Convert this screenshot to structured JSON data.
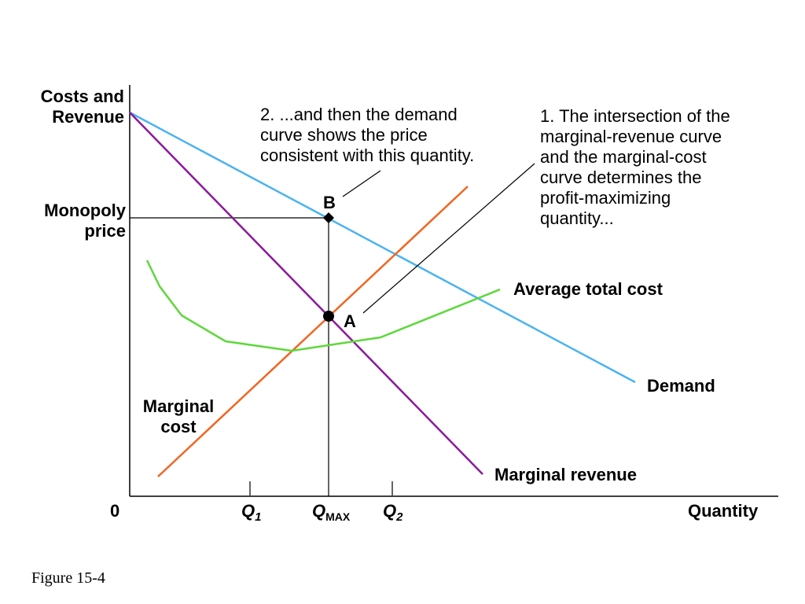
{
  "axes": {
    "y_label_line1": "Costs and",
    "y_label_line2": "Revenue",
    "x_label": "Quantity",
    "origin": "0",
    "y_tick_line1": "Monopoly",
    "y_tick_line2": "price"
  },
  "x_ticks": {
    "q1_main": "Q",
    "q1_sub": "1",
    "qmax_main": "Q",
    "qmax_sub": "MAX",
    "q2_main": "Q",
    "q2_sub": "2"
  },
  "curves": {
    "demand": "Demand",
    "marginal_revenue": "Marginal revenue",
    "average_total_cost": "Average total cost",
    "marginal_cost_line1": "Marginal",
    "marginal_cost_line2": "cost"
  },
  "points": {
    "a": "A",
    "b": "B"
  },
  "annotations": {
    "step2": [
      "2. ...and then the demand",
      "curve shows the price",
      "consistent with this quantity."
    ],
    "step1": [
      "1. The intersection of the",
      "marginal-revenue curve",
      "and the marginal-cost",
      "curve determines the",
      "profit-maximizing",
      "quantity..."
    ]
  },
  "caption": "Figure 15-4",
  "colors": {
    "demand": "#4bb3f0",
    "marginal_revenue": "#8b1a9b",
    "marginal_cost": "#f26522",
    "average_total_cost": "#5dd83a",
    "axis": "#000000"
  }
}
